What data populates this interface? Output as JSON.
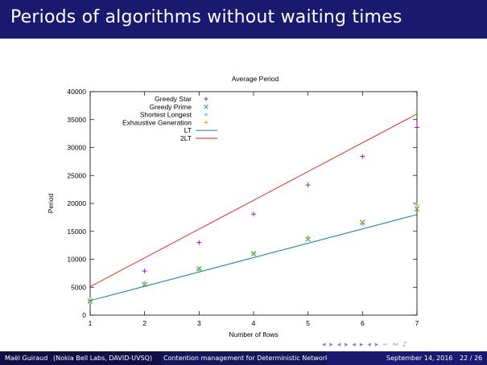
{
  "slide": {
    "title": "Periods of algorithms without waiting times",
    "footer": {
      "author": "Maël Guiraud",
      "affiliation": "(Nokia Bell Labs, DAVID-UVSQ)",
      "short_title": "Contention management for Deterministic Networking",
      "date": "September 14, 2016",
      "page": "22 / 26"
    },
    "nav_glyphs": "◂ ▸ ◂ ▸ ◂ ▸ ◂ ▸ ∽ ∾ ♪"
  },
  "chart_data": {
    "type": "scatter",
    "title": "Average Period",
    "xlabel": "Number of flows",
    "ylabel": "Period",
    "xlim": [
      1,
      7
    ],
    "ylim": [
      0,
      40000
    ],
    "xticks": [
      1,
      2,
      3,
      4,
      5,
      6,
      7
    ],
    "yticks": [
      0,
      5000,
      10000,
      15000,
      20000,
      25000,
      30000,
      35000,
      40000
    ],
    "grid": false,
    "legend_position": "top-center",
    "series": [
      {
        "name": "Greedy Star",
        "marker": "plus",
        "color": "#9400d3",
        "x": [
          1,
          2,
          3,
          4,
          5,
          6,
          7
        ],
        "y": [
          2600,
          7900,
          13000,
          18100,
          23300,
          28400,
          33600
        ]
      },
      {
        "name": "Greedy Prime",
        "marker": "cross",
        "color": "#009e73",
        "x": [
          1,
          2,
          3,
          4,
          5,
          6,
          7
        ],
        "y": [
          2500,
          5500,
          8300,
          11000,
          13600,
          16600,
          19000
        ]
      },
      {
        "name": "Shortest Longest",
        "marker": "plus",
        "color": "#56b4e9",
        "x": [
          1,
          2,
          3,
          4,
          5,
          6,
          7
        ],
        "y": [
          2600,
          5700,
          8200,
          11100,
          13900,
          16300,
          19700
        ]
      },
      {
        "name": "Exhaustive Generation",
        "marker": "plus",
        "color": "#e69f00",
        "x": [
          1,
          2,
          3,
          4,
          5,
          6,
          7
        ],
        "y": [
          2550,
          5600,
          8250,
          11050,
          13750,
          16450,
          19300
        ]
      },
      {
        "name": "LT",
        "type": "line",
        "color": "#0072b2",
        "x": [
          1,
          7
        ],
        "y": [
          2600,
          18000
        ]
      },
      {
        "name": "2LT",
        "type": "line",
        "color": "#e51e10",
        "x": [
          1,
          7
        ],
        "y": [
          5100,
          36000
        ]
      }
    ]
  }
}
